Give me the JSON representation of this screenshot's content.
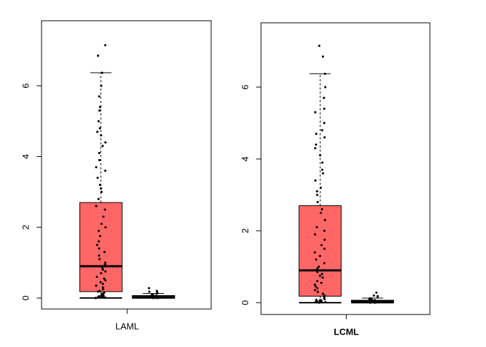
{
  "chart_data": [
    {
      "type": "box",
      "xlabel": "LAML",
      "xlabel_bold": false,
      "ylim": [
        -0.31,
        7.84
      ],
      "yticks": [
        0,
        2,
        4,
        6
      ],
      "boxes": [
        {
          "color": "#ff6666",
          "min": 0,
          "q1": 0.18,
          "median": 0.9,
          "q3": 2.7,
          "max": 6.37,
          "points": [
            0,
            0.01,
            0.02,
            0.02,
            0.03,
            0.04,
            0.05,
            0.06,
            0.07,
            0.08,
            0.1,
            0.12,
            0.15,
            0.18,
            0.2,
            0.25,
            0.3,
            0.35,
            0.4,
            0.45,
            0.5,
            0.55,
            0.6,
            0.7,
            0.75,
            0.8,
            0.85,
            0.9,
            0.95,
            1.0,
            1.1,
            1.2,
            1.3,
            1.4,
            1.5,
            1.6,
            1.75,
            1.9,
            2.0,
            2.1,
            2.3,
            2.5,
            2.6,
            2.8,
            3.0,
            3.1,
            3.2,
            3.4,
            3.6,
            3.7,
            3.9,
            4.1,
            4.3,
            4.4,
            4.6,
            4.7,
            4.8,
            5.0,
            5.3,
            5.4,
            5.7,
            6.0,
            6.37,
            6.85,
            7.15
          ]
        },
        {
          "color": "#ffffff",
          "min": 0,
          "q1": 0,
          "median": 0.03,
          "q3": 0.07,
          "max": 0.13,
          "points": [
            0,
            0,
            0.01,
            0.01,
            0.02,
            0.02,
            0.03,
            0.03,
            0.04,
            0.05,
            0.05,
            0.06,
            0.07,
            0.08,
            0.1,
            0.12,
            0.15,
            0.18,
            0.2,
            0.28
          ]
        }
      ]
    },
    {
      "type": "box",
      "xlabel": "LCML",
      "xlabel_bold": true,
      "ylim": [
        -0.33,
        7.79
      ],
      "yticks": [
        0,
        2,
        4,
        6
      ],
      "boxes": [
        {
          "color": "#ff6666",
          "min": 0,
          "q1": 0.18,
          "median": 0.9,
          "q3": 2.7,
          "max": 6.37,
          "points": [
            0,
            0.01,
            0.02,
            0.02,
            0.03,
            0.04,
            0.05,
            0.06,
            0.07,
            0.08,
            0.1,
            0.12,
            0.15,
            0.18,
            0.2,
            0.25,
            0.3,
            0.35,
            0.4,
            0.45,
            0.5,
            0.55,
            0.6,
            0.7,
            0.75,
            0.8,
            0.85,
            0.9,
            0.95,
            1.0,
            1.1,
            1.2,
            1.3,
            1.4,
            1.5,
            1.6,
            1.75,
            1.9,
            2.0,
            2.1,
            2.3,
            2.5,
            2.6,
            2.8,
            3.0,
            3.1,
            3.2,
            3.4,
            3.6,
            3.7,
            3.9,
            4.1,
            4.3,
            4.4,
            4.6,
            4.7,
            4.8,
            5.0,
            5.3,
            5.4,
            5.7,
            6.0,
            6.37,
            6.85,
            7.15
          ]
        },
        {
          "color": "#ffffff",
          "min": 0,
          "q1": 0,
          "median": 0.03,
          "q3": 0.07,
          "max": 0.13,
          "points": [
            0,
            0,
            0.01,
            0.01,
            0.02,
            0.02,
            0.03,
            0.03,
            0.04,
            0.05,
            0.05,
            0.06,
            0.07,
            0.08,
            0.1,
            0.12,
            0.15,
            0.18,
            0.2,
            0.28
          ]
        }
      ]
    }
  ]
}
